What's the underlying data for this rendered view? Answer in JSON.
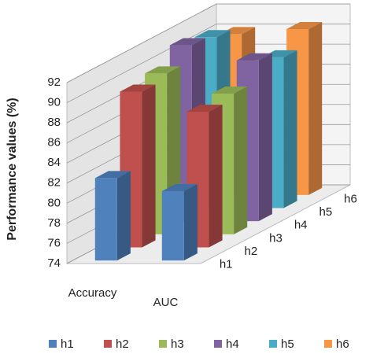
{
  "chart_data": {
    "type": "bar3d",
    "y_label": "Performance values (%)",
    "categories": [
      "Accuracy",
      "AUC"
    ],
    "series": [
      {
        "name": "h1",
        "color": "#4f81bd",
        "values": [
          82.2,
          80.9
        ]
      },
      {
        "name": "h2",
        "color": "#c0504d",
        "values": [
          89.5,
          87.5
        ]
      },
      {
        "name": "h3",
        "color": "#9bbb59",
        "values": [
          90,
          88
        ]
      },
      {
        "name": "h4",
        "color": "#8064a2",
        "values": [
          91.5,
          90
        ]
      },
      {
        "name": "h5",
        "color": "#4bacc6",
        "values": [
          91,
          89
        ]
      },
      {
        "name": "h6",
        "color": "#f79646",
        "values": [
          90,
          90.5
        ]
      }
    ],
    "ylim": [
      74,
      92
    ],
    "yticks": [
      74,
      76,
      78,
      80,
      82,
      84,
      86,
      88,
      90,
      92
    ],
    "grid": true
  }
}
